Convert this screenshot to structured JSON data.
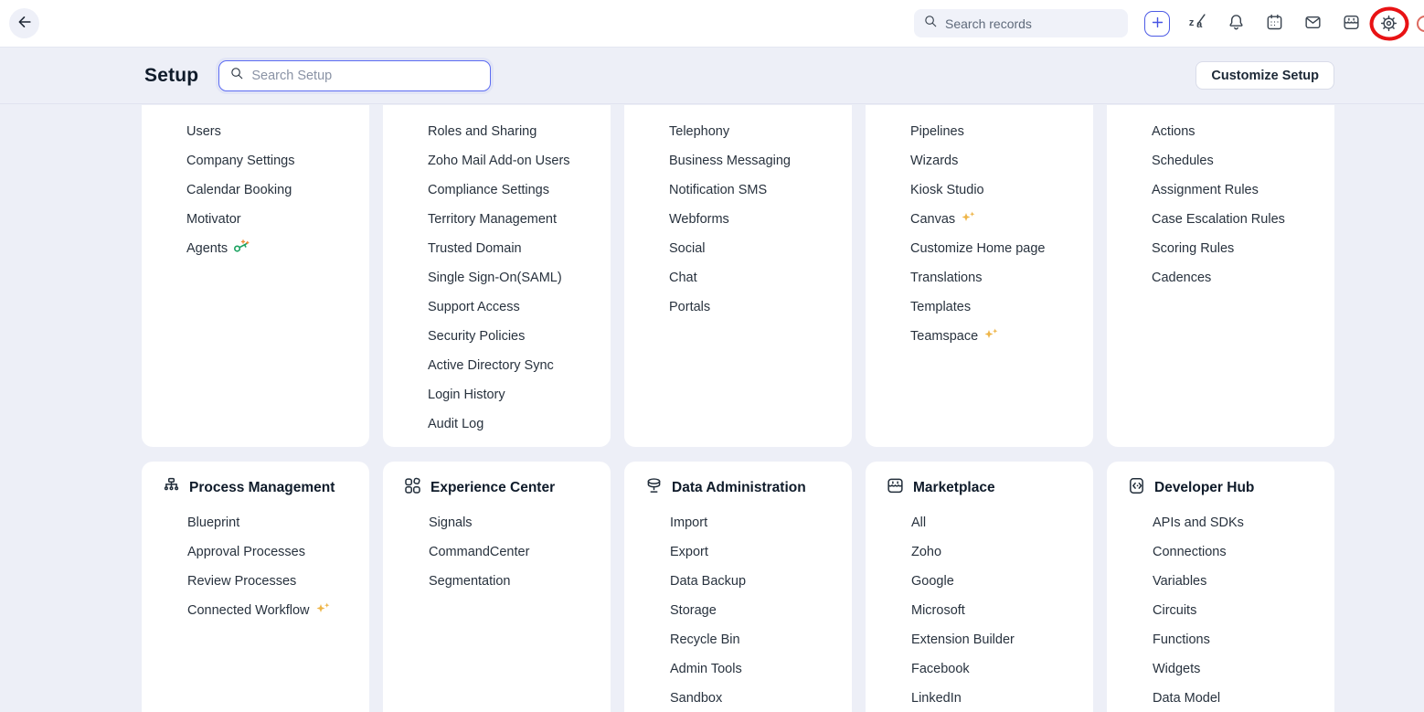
{
  "topbar": {
    "search_placeholder": "Search records",
    "icons": [
      "back-arrow",
      "plus",
      "translate",
      "bell",
      "calendar",
      "mail",
      "marketplace",
      "settings-gear"
    ],
    "annotation": "red-circle-around-settings-gear"
  },
  "header": {
    "title": "Setup",
    "search_placeholder": "Search Setup",
    "customize_button": "Customize Setup"
  },
  "colors": {
    "topbar_bg": "#ffffff",
    "page_bg": "#edeff7",
    "card_bg": "#ffffff",
    "accent_blue": "#4d5be5",
    "focus_border": "#5c6cf2",
    "annotation_red": "#e81214",
    "sparkle_gold": "#eeb548",
    "agents_green": "#1aa15f",
    "agents_orange": "#ef8d3c",
    "item_text": "#28323e",
    "title_text": "#0f1b2a"
  },
  "setup_columns": [
    {
      "items": [
        "Users",
        "Company Settings",
        "Calendar Booking",
        "Motivator",
        {
          "label": "Agents",
          "badge": "agents-new"
        }
      ]
    },
    {
      "items": [
        "Roles and Sharing",
        "Zoho Mail Add-on Users",
        "Compliance Settings",
        "Territory Management",
        "Trusted Domain",
        "Single Sign-On(SAML)",
        "Support Access",
        "Security Policies",
        "Active Directory Sync",
        "Login History",
        "Audit Log"
      ]
    },
    {
      "items": [
        "Telephony",
        "Business Messaging",
        "Notification SMS",
        "Webforms",
        "Social",
        "Chat",
        "Portals"
      ]
    },
    {
      "items": [
        "Pipelines",
        "Wizards",
        "Kiosk Studio",
        {
          "label": "Canvas",
          "badge": "sparkle"
        },
        "Customize Home page",
        "Translations",
        "Templates",
        {
          "label": "Teamspace",
          "badge": "sparkle"
        }
      ]
    },
    {
      "items": [
        "Actions",
        "Schedules",
        "Assignment Rules",
        "Case Escalation Rules",
        "Scoring Rules",
        "Cadences"
      ]
    }
  ],
  "setup_sections": [
    {
      "title": "Process Management",
      "icon": "org-chart-icon",
      "items": [
        "Blueprint",
        "Approval Processes",
        "Review Processes",
        {
          "label": "Connected Workflow",
          "badge": "sparkle"
        }
      ]
    },
    {
      "title": "Experience Center",
      "icon": "grid-icon",
      "items": [
        "Signals",
        "CommandCenter",
        "Segmentation"
      ]
    },
    {
      "title": "Data Administration",
      "icon": "database-icon",
      "items": [
        "Import",
        "Export",
        "Data Backup",
        "Storage",
        "Recycle Bin",
        "Admin Tools",
        "Sandbox"
      ]
    },
    {
      "title": "Marketplace",
      "icon": "storefront-icon",
      "items": [
        "All",
        "Zoho",
        "Google",
        "Microsoft",
        "Extension Builder",
        "Facebook",
        "LinkedIn"
      ]
    },
    {
      "title": "Developer Hub",
      "icon": "code-file-icon",
      "items": [
        "APIs and SDKs",
        "Connections",
        "Variables",
        "Circuits",
        "Functions",
        "Widgets",
        "Data Model"
      ]
    }
  ]
}
